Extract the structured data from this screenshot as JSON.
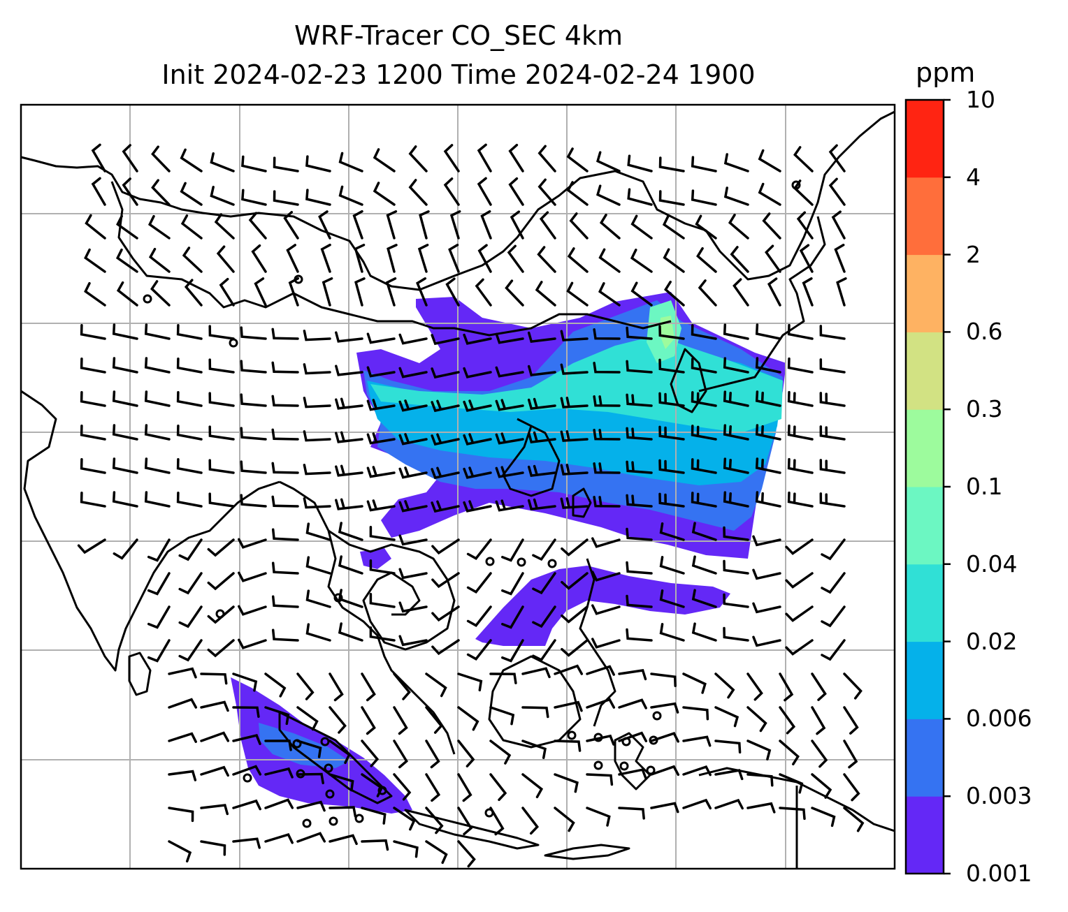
{
  "title": {
    "line1": "WRF-Tracer CO_SEC 4km",
    "line2": "Init 2024-02-23 1200 Time 2024-02-24 1900"
  },
  "colorbar": {
    "units": "ppm",
    "ticks": [
      "0.001",
      "0.003",
      "0.006",
      "0.02",
      "0.04",
      "0.1",
      "0.3",
      "0.6",
      "2",
      "4",
      "10"
    ],
    "colors": [
      "#6428f6",
      "#3573f2",
      "#05b1ea",
      "#30e0d6",
      "#6cf7c2",
      "#9dfb9d",
      "#d2e283",
      "#feb262",
      "#ff6e3b",
      "#ff2412"
    ]
  },
  "map": {
    "features": [
      "coastlines",
      "country-borders",
      "lat-lon-gridlines",
      "wind-barbs",
      "tracer-concentration-fill"
    ],
    "gridline_color": "#b0b0b0"
  }
}
